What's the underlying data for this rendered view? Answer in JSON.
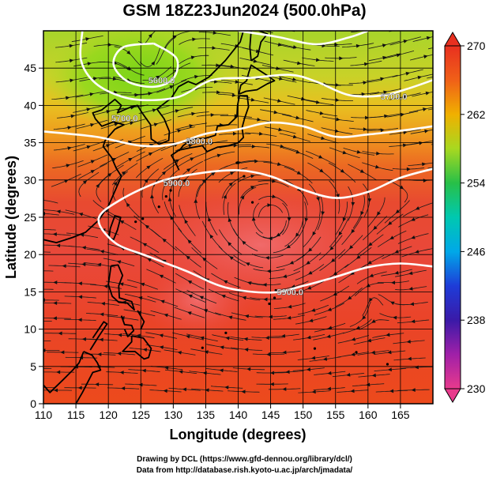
{
  "title": "GSM 18Z23Jun2024 (500.0hPa)",
  "credits": {
    "line1": "Drawing by DCL (https://www.gfd-dennou.org/library/dcl/)",
    "line2": "Data from http://database.rish.kyoto-u.ac.jp/arch/jmadata/"
  },
  "chart_data": {
    "type": "heatmap",
    "xlabel": "Longitude (degrees)",
    "ylabel": "Latitude  (degrees)",
    "xlim": [
      110,
      170
    ],
    "ylim": [
      0,
      50
    ],
    "x_ticks": [
      "110",
      "115",
      "120",
      "125",
      "130",
      "135",
      "140",
      "145",
      "150",
      "155",
      "160",
      "165"
    ],
    "y_ticks": [
      "0",
      "5",
      "10",
      "15",
      "20",
      "25",
      "30",
      "35",
      "40",
      "45"
    ],
    "colorbar": {
      "min": 230,
      "max": 270,
      "ticks": [
        "230",
        "238",
        "246",
        "254",
        "262",
        "270"
      ]
    },
    "contours": [
      {
        "label": "5800.0",
        "points": [
          [
            110,
            36.5
          ],
          [
            118,
            35.8
          ],
          [
            125,
            34.6
          ],
          [
            130,
            34.8
          ],
          [
            135,
            36.2
          ],
          [
            140,
            36.8
          ],
          [
            145,
            37.7
          ],
          [
            150,
            37.2
          ],
          [
            155,
            35.8
          ],
          [
            160,
            36.1
          ],
          [
            165,
            36.6
          ],
          [
            170,
            37.2
          ]
        ]
      },
      {
        "label": "5900.0",
        "points": [
          [
            170,
            31.5
          ],
          [
            165,
            30.3
          ],
          [
            160,
            28.4
          ],
          [
            155,
            27.6
          ],
          [
            150,
            28.7
          ],
          [
            145,
            30.5
          ],
          [
            140,
            31.3
          ],
          [
            134,
            30.9
          ],
          [
            128,
            29.8
          ],
          [
            122,
            27.4
          ],
          [
            118.5,
            24.8
          ],
          [
            121,
            21.6
          ],
          [
            126,
            19.8
          ],
          [
            132,
            17.8
          ],
          [
            138,
            15.6
          ],
          [
            145,
            14.9
          ],
          [
            150,
            15.8
          ],
          [
            155,
            17.0
          ],
          [
            160,
            18.3
          ],
          [
            165,
            18.8
          ],
          [
            170,
            18.4
          ]
        ]
      },
      {
        "label": "5600.0",
        "points": [
          [
            127,
            48.3
          ],
          [
            130.5,
            46.3
          ],
          [
            130,
            43.6
          ],
          [
            127,
            42.5
          ],
          [
            123,
            43.2
          ],
          [
            120.8,
            45.5
          ],
          [
            122.3,
            47.8
          ],
          [
            127,
            48.3
          ]
        ]
      },
      {
        "label": "5700.0",
        "points": [
          [
            116,
            50
          ],
          [
            115.8,
            46
          ],
          [
            118,
            43
          ],
          [
            122,
            41.2
          ],
          [
            126,
            40.7
          ],
          [
            131,
            41.2
          ],
          [
            136,
            43.4
          ],
          [
            142,
            43.7
          ],
          [
            148,
            44.1
          ],
          [
            152,
            43.2
          ],
          [
            157,
            41.4
          ],
          [
            162,
            41.3
          ],
          [
            166,
            42.2
          ],
          [
            170,
            43.4
          ]
        ]
      },
      {
        "label": "",
        "points": [
          [
            140,
            50
          ],
          [
            146,
            49.2
          ],
          [
            152,
            48.2
          ],
          [
            157,
            49.1
          ],
          [
            160,
            50
          ]
        ]
      }
    ],
    "contour_labels": [
      {
        "text": "5600.0",
        "x": 128.2,
        "y": 43.4
      },
      {
        "text": "5700.0",
        "x": 122.5,
        "y": 38.3
      },
      {
        "text": "5700.0",
        "x": 164.0,
        "y": 41.2
      },
      {
        "text": "5800.0",
        "x": 134.0,
        "y": 35.2
      },
      {
        "text": "5900.0",
        "x": 130.5,
        "y": 29.6
      },
      {
        "text": "5900.0",
        "x": 148.0,
        "y": 15.0
      }
    ]
  }
}
